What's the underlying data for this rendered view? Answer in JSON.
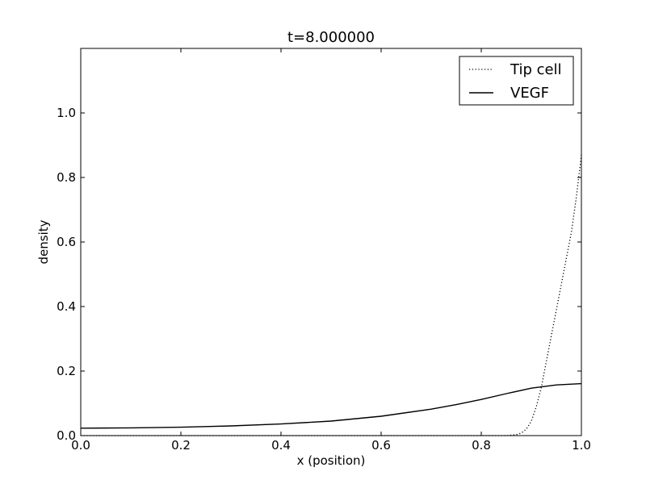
{
  "chart_data": {
    "type": "line",
    "title": "t=8.000000",
    "xlabel": "x (position)",
    "ylabel": "density",
    "xlim": [
      0.0,
      1.0
    ],
    "ylim": [
      0.0,
      1.2
    ],
    "grid": false,
    "legend_placement": "top-right",
    "x_ticks": [
      "0.0",
      "0.2",
      "0.4",
      "0.6",
      "0.8",
      "1.0"
    ],
    "x_tick_values": [
      0.0,
      0.2,
      0.4,
      0.6,
      0.8,
      1.0
    ],
    "y_ticks": [
      "0.0",
      "0.2",
      "0.4",
      "0.6",
      "0.8",
      "1.0"
    ],
    "y_tick_values": [
      0.0,
      0.2,
      0.4,
      0.6,
      0.8,
      1.0
    ],
    "series": [
      {
        "name": "Tip cell",
        "style": "dotted",
        "color": "#000000",
        "points": [
          [
            0.0,
            0.0
          ],
          [
            0.5,
            0.0
          ],
          [
            0.85,
            0.0
          ],
          [
            0.87,
            0.003
          ],
          [
            0.88,
            0.008
          ],
          [
            0.89,
            0.02
          ],
          [
            0.9,
            0.045
          ],
          [
            0.91,
            0.09
          ],
          [
            0.92,
            0.15
          ],
          [
            0.93,
            0.23
          ],
          [
            0.94,
            0.31
          ],
          [
            0.95,
            0.39
          ],
          [
            0.96,
            0.47
          ],
          [
            0.97,
            0.55
          ],
          [
            0.98,
            0.63
          ],
          [
            0.99,
            0.74
          ],
          [
            1.0,
            0.87
          ]
        ]
      },
      {
        "name": "VEGF",
        "style": "solid",
        "color": "#000000",
        "points": [
          [
            0.0,
            0.023
          ],
          [
            0.1,
            0.024
          ],
          [
            0.2,
            0.026
          ],
          [
            0.3,
            0.03
          ],
          [
            0.4,
            0.036
          ],
          [
            0.5,
            0.045
          ],
          [
            0.6,
            0.06
          ],
          [
            0.7,
            0.082
          ],
          [
            0.75,
            0.096
          ],
          [
            0.8,
            0.112
          ],
          [
            0.85,
            0.13
          ],
          [
            0.9,
            0.147
          ],
          [
            0.95,
            0.157
          ],
          [
            1.0,
            0.161
          ]
        ]
      }
    ]
  }
}
